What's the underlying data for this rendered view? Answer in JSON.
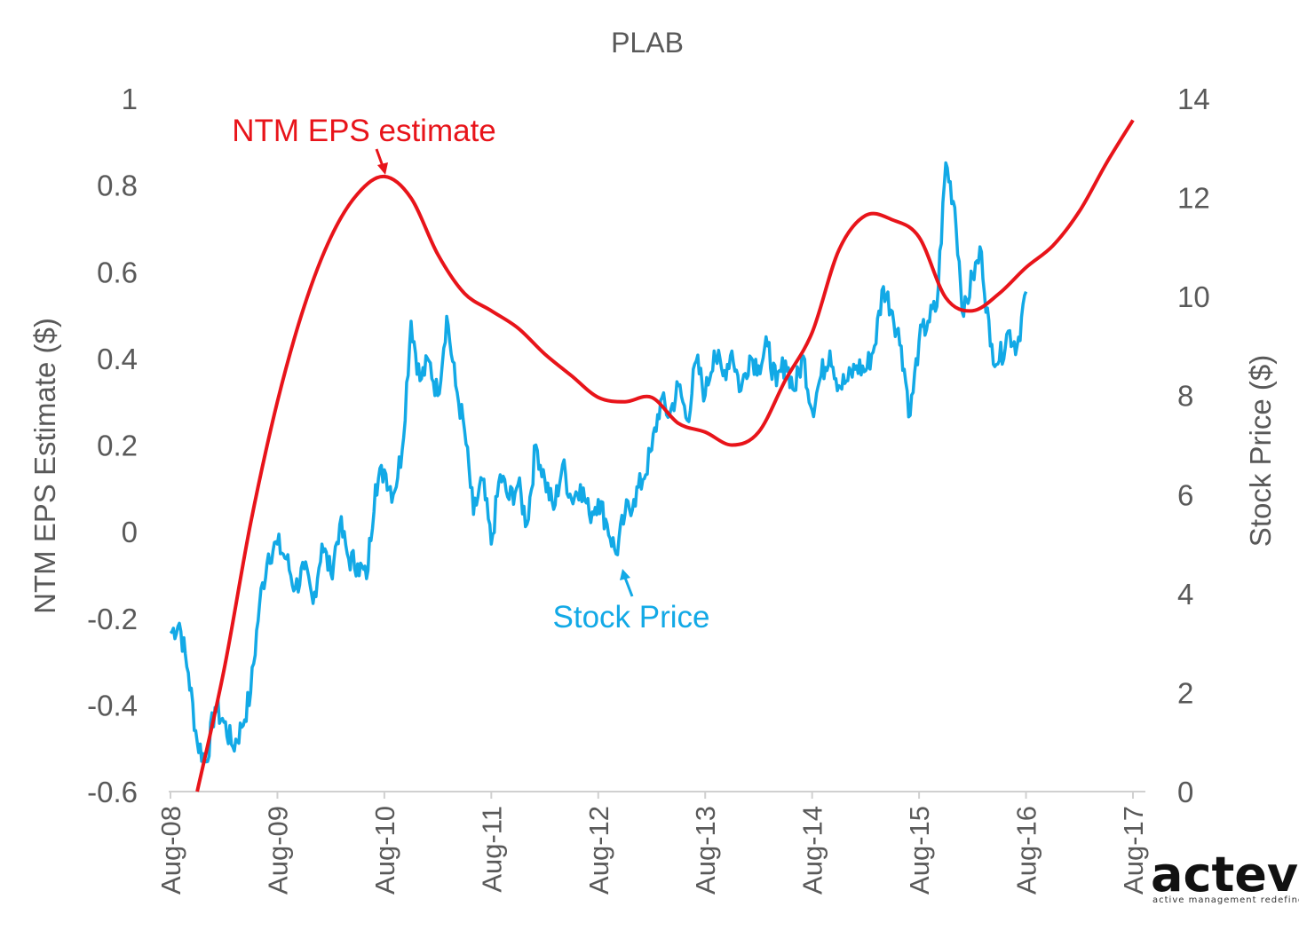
{
  "chart_data": {
    "type": "line",
    "title": "PLAB",
    "x_ticks": [
      "Aug-08",
      "Aug-09",
      "Aug-10",
      "Aug-11",
      "Aug-12",
      "Aug-13",
      "Aug-14",
      "Aug-15",
      "Aug-16",
      "Aug-17"
    ],
    "xlim": [
      "Aug-08",
      "Aug-17"
    ],
    "y_left": {
      "label": "NTM EPS Estimate ($)",
      "ticks": [
        "1",
        "0.8",
        "0.6",
        "0.4",
        "0.2",
        "0",
        "-0.2",
        "-0.4",
        "-0.6"
      ],
      "range": [
        -0.6,
        1.0
      ]
    },
    "y_right": {
      "label": "Stock Price ($)",
      "ticks": [
        "14",
        "12",
        "10",
        "8",
        "6",
        "4",
        "2",
        "0"
      ],
      "range": [
        0,
        14
      ]
    },
    "grid": false,
    "series": [
      {
        "name": "NTM EPS estimate",
        "axis": "left",
        "color": "#E8141A",
        "points": [
          [
            "Nov-08",
            -0.6
          ],
          [
            "Feb-09",
            -0.32
          ],
          [
            "May-09",
            0.02
          ],
          [
            "Aug-09",
            0.3
          ],
          [
            "Nov-09",
            0.52
          ],
          [
            "Feb-10",
            0.68
          ],
          [
            "May-10",
            0.78
          ],
          [
            "Aug-10",
            0.82
          ],
          [
            "Nov-10",
            0.77
          ],
          [
            "Feb-11",
            0.64
          ],
          [
            "May-11",
            0.55
          ],
          [
            "Aug-11",
            0.51
          ],
          [
            "Nov-11",
            0.47
          ],
          [
            "Feb-12",
            0.41
          ],
          [
            "May-12",
            0.36
          ],
          [
            "Aug-12",
            0.31
          ],
          [
            "Nov-12",
            0.3
          ],
          [
            "Feb-13",
            0.31
          ],
          [
            "May-13",
            0.25
          ],
          [
            "Aug-13",
            0.23
          ],
          [
            "Nov-13",
            0.2
          ],
          [
            "Feb-14",
            0.23
          ],
          [
            "May-14",
            0.35
          ],
          [
            "Aug-14",
            0.46
          ],
          [
            "Nov-14",
            0.65
          ],
          [
            "Feb-15",
            0.73
          ],
          [
            "May-15",
            0.72
          ],
          [
            "Aug-15",
            0.68
          ],
          [
            "Nov-15",
            0.54
          ],
          [
            "Feb-16",
            0.51
          ],
          [
            "May-16",
            0.55
          ],
          [
            "Aug-16",
            0.61
          ],
          [
            "Nov-16",
            0.66
          ],
          [
            "Feb-17",
            0.74
          ],
          [
            "May-17",
            0.85
          ],
          [
            "Aug-17",
            0.95
          ]
        ]
      },
      {
        "name": "Stock Price",
        "axis": "right",
        "color": "#12A9E6",
        "points": [
          [
            "Aug-08",
            3.2
          ],
          [
            "Sep-08",
            3.4
          ],
          [
            "Oct-08",
            2.4
          ],
          [
            "Nov-08",
            1.0
          ],
          [
            "Dec-08",
            0.6
          ],
          [
            "Jan-09",
            1.7
          ],
          [
            "Feb-09",
            1.4
          ],
          [
            "Mar-09",
            0.9
          ],
          [
            "Apr-09",
            1.3
          ],
          [
            "May-09",
            2.0
          ],
          [
            "Jun-09",
            3.8
          ],
          [
            "Jul-09",
            4.8
          ],
          [
            "Aug-09",
            5.0
          ],
          [
            "Sep-09",
            4.7
          ],
          [
            "Oct-09",
            4.1
          ],
          [
            "Nov-09",
            4.5
          ],
          [
            "Dec-09",
            3.8
          ],
          [
            "Jan-10",
            5.0
          ],
          [
            "Feb-10",
            4.4
          ],
          [
            "Mar-10",
            5.4
          ],
          [
            "Apr-10",
            4.7
          ],
          [
            "May-10",
            4.6
          ],
          [
            "Jun-10",
            4.3
          ],
          [
            "Jul-10",
            6.2
          ],
          [
            "Aug-10",
            6.5
          ],
          [
            "Sep-10",
            6.0
          ],
          [
            "Oct-10",
            6.9
          ],
          [
            "Nov-10",
            9.5
          ],
          [
            "Dec-10",
            8.3
          ],
          [
            "Jan-11",
            8.7
          ],
          [
            "Feb-11",
            8.0
          ],
          [
            "Mar-11",
            9.6
          ],
          [
            "Apr-11",
            8.2
          ],
          [
            "May-11",
            7.3
          ],
          [
            "Jun-11",
            5.6
          ],
          [
            "Jul-11",
            6.3
          ],
          [
            "Aug-11",
            5.0
          ],
          [
            "Sep-11",
            6.4
          ],
          [
            "Oct-11",
            5.9
          ],
          [
            "Nov-11",
            6.2
          ],
          [
            "Dec-11",
            5.4
          ],
          [
            "Jan-12",
            7.0
          ],
          [
            "Feb-12",
            6.3
          ],
          [
            "Mar-12",
            5.7
          ],
          [
            "Apr-12",
            6.6
          ],
          [
            "May-12",
            5.9
          ],
          [
            "Jun-12",
            6.2
          ],
          [
            "Jul-12",
            5.6
          ],
          [
            "Aug-12",
            5.9
          ],
          [
            "Sep-12",
            5.4
          ],
          [
            "Oct-12",
            4.8
          ],
          [
            "Nov-12",
            5.6
          ],
          [
            "Dec-12",
            5.9
          ],
          [
            "Jan-13",
            6.3
          ],
          [
            "Feb-13",
            6.9
          ],
          [
            "Mar-13",
            7.9
          ],
          [
            "Apr-13",
            7.6
          ],
          [
            "May-13",
            8.2
          ],
          [
            "Jun-13",
            7.5
          ],
          [
            "Jul-13",
            8.7
          ],
          [
            "Aug-13",
            8.0
          ],
          [
            "Sep-13",
            8.9
          ],
          [
            "Oct-13",
            8.4
          ],
          [
            "Nov-13",
            8.9
          ],
          [
            "Dec-13",
            8.1
          ],
          [
            "Jan-14",
            8.8
          ],
          [
            "Feb-14",
            8.6
          ],
          [
            "Mar-14",
            9.0
          ],
          [
            "Apr-14",
            8.2
          ],
          [
            "May-14",
            8.7
          ],
          [
            "Jun-14",
            8.1
          ],
          [
            "Jul-14",
            8.8
          ],
          [
            "Aug-14",
            7.7
          ],
          [
            "Sep-14",
            8.4
          ],
          [
            "Oct-14",
            8.9
          ],
          [
            "Nov-14",
            8.2
          ],
          [
            "Dec-14",
            8.3
          ],
          [
            "Jan-15",
            8.6
          ],
          [
            "Feb-15",
            8.5
          ],
          [
            "Mar-15",
            9.0
          ],
          [
            "Apr-15",
            10.2
          ],
          [
            "May-15",
            9.7
          ],
          [
            "Jun-15",
            9.0
          ],
          [
            "Jul-15",
            7.6
          ],
          [
            "Aug-15",
            9.1
          ],
          [
            "Sep-15",
            9.5
          ],
          [
            "Oct-15",
            9.8
          ],
          [
            "Nov-15",
            12.7
          ],
          [
            "Dec-15",
            11.8
          ],
          [
            "Jan-16",
            9.6
          ],
          [
            "Feb-16",
            10.4
          ],
          [
            "Mar-16",
            10.9
          ],
          [
            "Apr-16",
            9.0
          ],
          [
            "May-16",
            8.7
          ],
          [
            "Jun-16",
            9.3
          ],
          [
            "Jul-16",
            9.0
          ],
          [
            "Aug-16",
            10.1
          ]
        ]
      }
    ],
    "annotations": [
      {
        "text": "NTM EPS estimate",
        "color": "#E8141A",
        "arrow_to": "Aug-10 peak"
      },
      {
        "text": "Stock Price",
        "color": "#12A9E6",
        "arrow_to": "Nov-12 low"
      }
    ]
  },
  "logo": {
    "word": "acteve",
    "tagline": "active management redefined."
  }
}
